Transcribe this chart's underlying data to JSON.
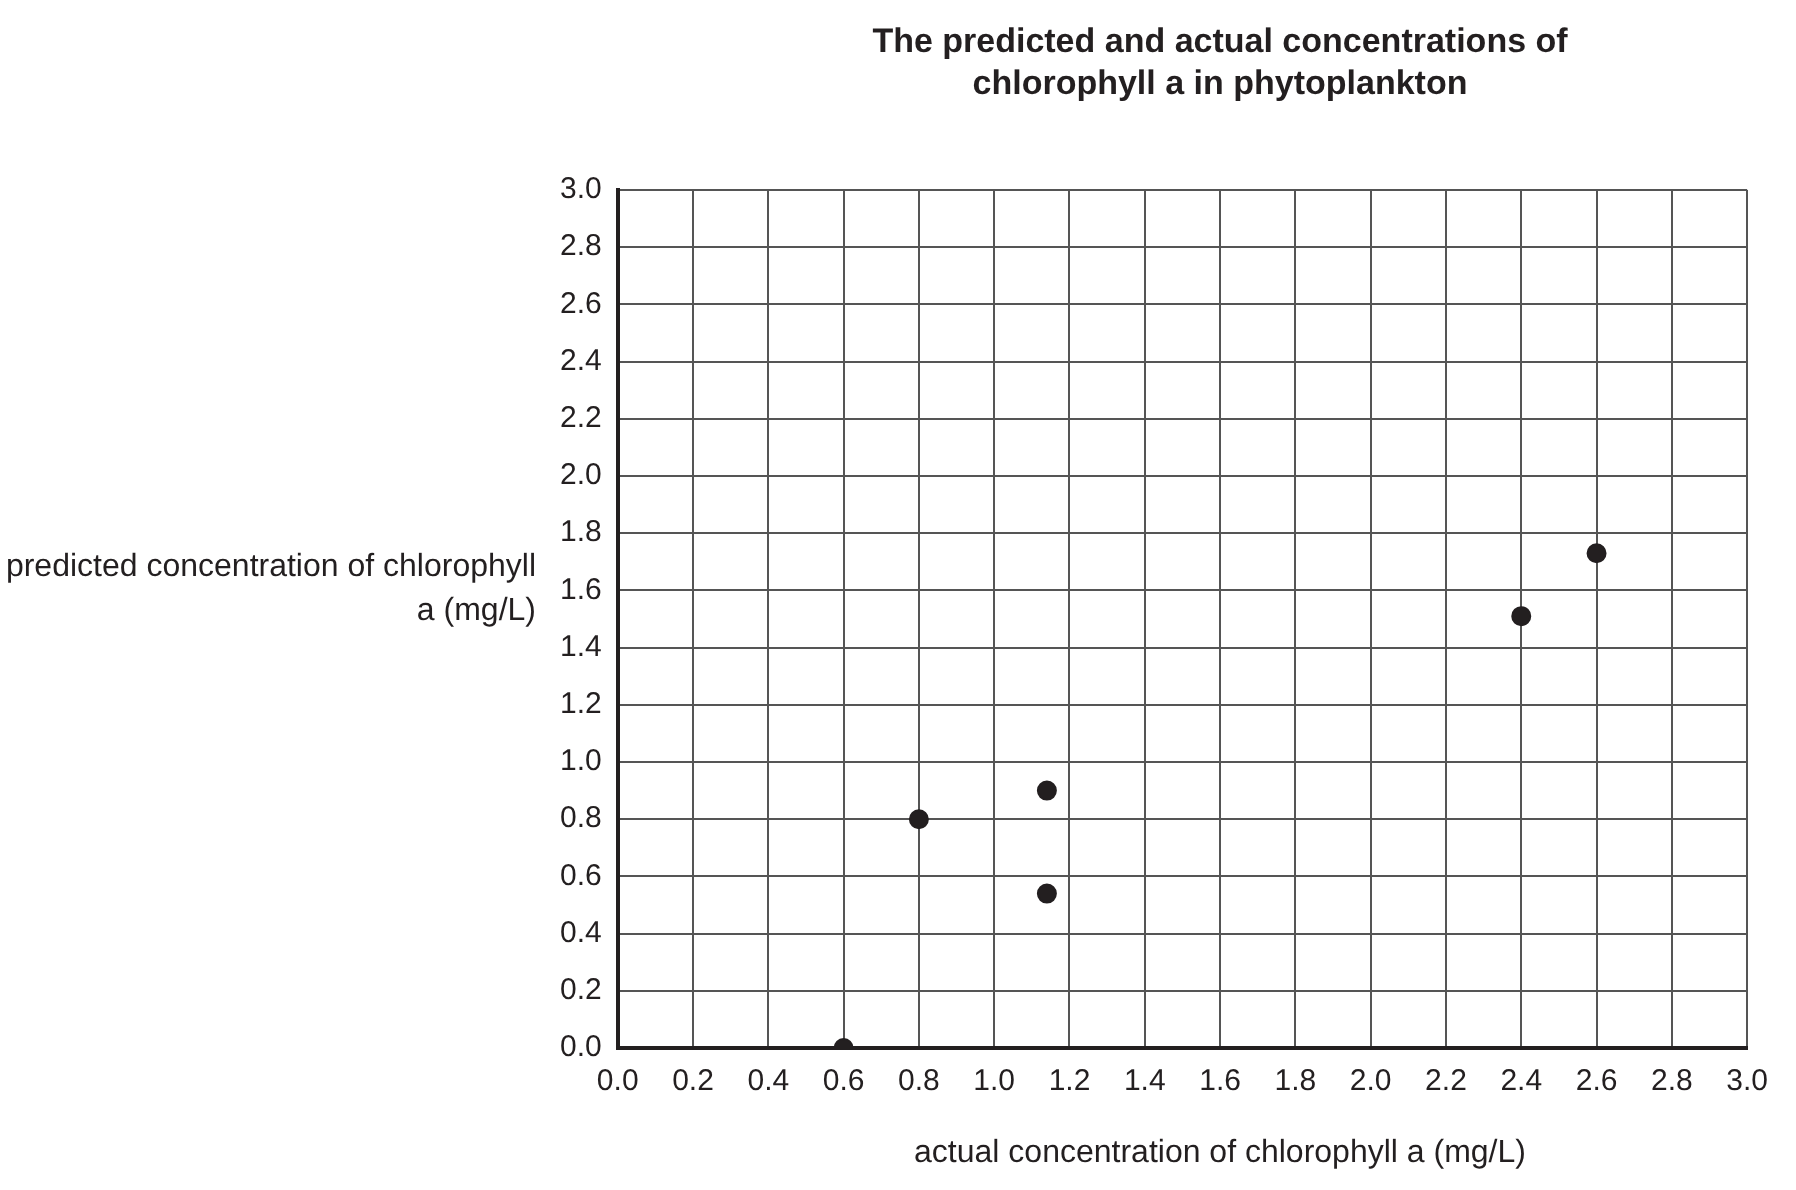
{
  "chart_data": {
    "type": "scatter",
    "title": "The predicted and actual concentrations of chlorophyll a in phytoplankton",
    "xlabel": "actual concentration of chlorophyll a (mg/L)",
    "ylabel": "predicted concentration of chlorophyll a (mg/L)",
    "x": [
      0.6,
      0.8,
      1.14,
      1.14,
      2.4,
      2.6
    ],
    "series": [
      {
        "color": "#231f20",
        "values": [
          0,
          0.8,
          0.9,
          0.54,
          1.51,
          1.73
        ]
      }
    ],
    "xlim": [
      0,
      3
    ],
    "ylim": [
      0,
      3
    ],
    "xticks": [
      {
        "value": 0,
        "label": "0.0"
      },
      {
        "value": 0.2,
        "label": "0.2"
      },
      {
        "value": 0.4,
        "label": "0.4"
      },
      {
        "value": 0.6,
        "label": "0.6"
      },
      {
        "value": 0.8,
        "label": "0.8"
      },
      {
        "value": 1,
        "label": "1.0"
      },
      {
        "value": 1.2,
        "label": "1.2"
      },
      {
        "value": 1.4,
        "label": "1.4"
      },
      {
        "value": 1.6,
        "label": "1.6"
      },
      {
        "value": 1.8,
        "label": "1.8"
      },
      {
        "value": 2,
        "label": "2.0"
      },
      {
        "value": 2.2,
        "label": "2.2"
      },
      {
        "value": 2.4,
        "label": "2.4"
      },
      {
        "value": 2.6,
        "label": "2.6"
      },
      {
        "value": 2.8,
        "label": "2.8"
      },
      {
        "value": 3,
        "label": "3.0"
      }
    ],
    "yticks": [
      {
        "value": 0,
        "label": "0.0"
      },
      {
        "value": 0.2,
        "label": "0.2"
      },
      {
        "value": 0.4,
        "label": "0.4"
      },
      {
        "value": 0.6,
        "label": "0.6"
      },
      {
        "value": 0.8,
        "label": "0.8"
      },
      {
        "value": 1,
        "label": "1.0"
      },
      {
        "value": 1.2,
        "label": "1.2"
      },
      {
        "value": 1.4,
        "label": "1.4"
      },
      {
        "value": 1.6,
        "label": "1.6"
      },
      {
        "value": 1.8,
        "label": "1.8"
      },
      {
        "value": 2,
        "label": "2.0"
      },
      {
        "value": 2.2,
        "label": "2.2"
      },
      {
        "value": 2.4,
        "label": "2.4"
      },
      {
        "value": 2.6,
        "label": "2.6"
      },
      {
        "value": 2.8,
        "label": "2.8"
      },
      {
        "value": 3,
        "label": "3.0"
      }
    ],
    "grid": true,
    "legend": false,
    "marker": "circle"
  }
}
